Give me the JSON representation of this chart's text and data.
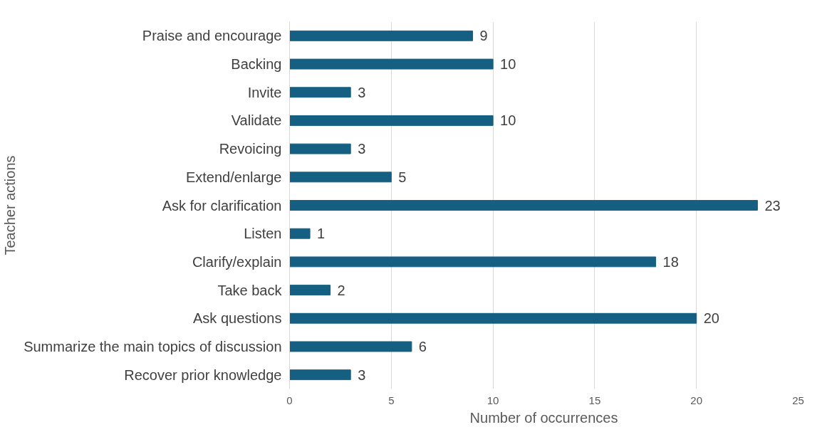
{
  "chart_data": {
    "type": "bar",
    "orientation": "horizontal",
    "xlabel": "Number of occurrences",
    "ylabel": "Teacher actions",
    "categories": [
      "Praise and encourage",
      "Backing",
      "Invite",
      "Validate",
      "Revoicing",
      "Extend/enlarge",
      "Ask for clarification",
      "Listen",
      "Clarify/explain",
      "Take back",
      "Ask questions",
      "Summarize the main topics of discussion",
      "Recover prior knowledge"
    ],
    "values": [
      9,
      10,
      3,
      10,
      3,
      5,
      23,
      1,
      18,
      2,
      20,
      6,
      3
    ],
    "color": "#156082",
    "xlim": [
      0,
      25
    ],
    "xticks": [
      0,
      5,
      10,
      15,
      20,
      25
    ],
    "grid": "x",
    "data_labels": true
  }
}
